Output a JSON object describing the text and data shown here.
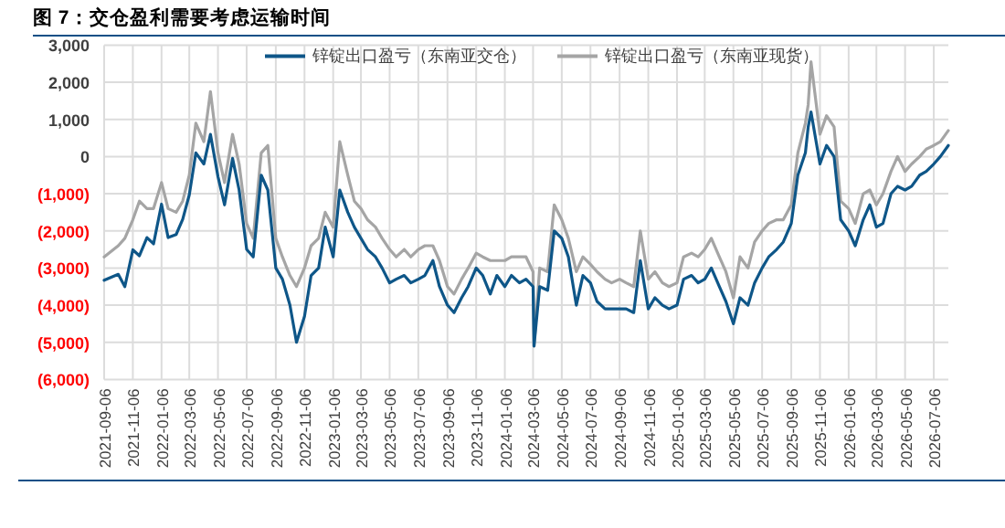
{
  "chart_data": {
    "type": "line",
    "title": "图 7：交仓盈利需要考虑运输时间",
    "legend": "top",
    "grid": true,
    "line_style": "solid",
    "marker": "none",
    "xlim": [
      "2021-09-06",
      "2026-08-06"
    ],
    "xticks": [
      "2021-09-06",
      "2021-11-06",
      "2022-01-06",
      "2022-03-06",
      "2022-05-06",
      "2022-07-06",
      "2022-09-06",
      "2022-11-06",
      "2023-01-06",
      "2023-03-06",
      "2023-05-06",
      "2023-07-06",
      "2023-09-06",
      "2023-11-06",
      "2024-01-06",
      "2024-03-06",
      "2024-05-06",
      "2024-07-06",
      "2024-09-06",
      "2024-11-06",
      "2025-01-06",
      "2025-03-06",
      "2025-05-06",
      "2025-07-06",
      "2025-09-06",
      "2025-11-06",
      "2026-01-06",
      "2026-03-06",
      "2026-05-06",
      "2026-07-06"
    ],
    "ylim": [
      -6000,
      3000
    ],
    "yticks": [
      {
        "value": 3000,
        "label": "3,000"
      },
      {
        "value": 2000,
        "label": "2,000"
      },
      {
        "value": 1000,
        "label": "1,000"
      },
      0,
      {
        "value": -1000,
        "label": "(1,000)"
      },
      {
        "value": -2000,
        "label": "(2,000)"
      },
      {
        "value": -3000,
        "label": "(3,000)"
      },
      {
        "value": -4000,
        "label": "(4,000)"
      },
      {
        "value": -5000,
        "label": "(5,000)"
      },
      {
        "value": -6000,
        "label": "(6,000)"
      }
    ],
    "x": [
      "2021-09-06",
      "2021-10-06",
      "2021-10-20",
      "2021-11-06",
      "2021-11-20",
      "2021-12-06",
      "2021-12-20",
      "2022-01-06",
      "2022-01-20",
      "2022-02-06",
      "2022-02-20",
      "2022-03-06",
      "2022-03-20",
      "2022-04-06",
      "2022-04-20",
      "2022-05-06",
      "2022-05-20",
      "2022-06-06",
      "2022-06-20",
      "2022-07-06",
      "2022-07-20",
      "2022-08-06",
      "2022-08-20",
      "2022-09-06",
      "2022-09-20",
      "2022-10-06",
      "2022-10-20",
      "2022-11-06",
      "2022-11-20",
      "2022-12-06",
      "2022-12-20",
      "2023-01-06",
      "2023-01-20",
      "2023-02-06",
      "2023-02-20",
      "2023-03-06",
      "2023-03-20",
      "2023-04-06",
      "2023-04-20",
      "2023-05-06",
      "2023-05-20",
      "2023-06-06",
      "2023-06-20",
      "2023-07-06",
      "2023-07-20",
      "2023-08-06",
      "2023-08-20",
      "2023-09-06",
      "2023-09-20",
      "2023-10-06",
      "2023-10-20",
      "2023-11-06",
      "2023-11-20",
      "2023-12-06",
      "2023-12-20",
      "2024-01-06",
      "2024-01-20",
      "2024-02-06",
      "2024-02-20",
      "2024-03-06",
      "2024-03-08",
      "2024-03-20",
      "2024-04-06",
      "2024-04-20",
      "2024-05-06",
      "2024-05-20",
      "2024-06-06",
      "2024-06-20",
      "2024-07-06",
      "2024-07-20",
      "2024-08-06",
      "2024-08-20",
      "2024-09-06",
      "2024-09-20",
      "2024-10-06",
      "2024-10-20",
      "2024-11-06",
      "2024-11-20",
      "2024-12-06",
      "2024-12-20",
      "2025-01-06",
      "2025-01-20",
      "2025-02-06",
      "2025-02-20",
      "2025-03-06",
      "2025-03-20",
      "2025-04-06",
      "2025-04-20",
      "2025-05-06",
      "2025-05-20",
      "2025-06-06",
      "2025-06-20",
      "2025-07-06",
      "2025-07-20",
      "2025-08-06",
      "2025-08-20",
      "2025-09-06",
      "2025-09-20",
      "2025-10-06",
      "2025-10-12",
      "2025-10-18",
      "2025-11-06",
      "2025-11-20",
      "2025-12-06",
      "2025-12-20",
      "2026-01-06",
      "2026-01-20",
      "2026-02-06",
      "2026-02-20",
      "2026-03-06",
      "2026-03-20",
      "2026-04-06",
      "2026-04-20",
      "2026-05-06",
      "2026-05-20",
      "2026-06-06",
      "2026-06-20",
      "2026-07-06",
      "2026-07-20",
      "2026-08-06"
    ],
    "series": [
      {
        "name": "锌锭出口盈亏（东南亚交仓）",
        "color": "#0e5688",
        "values": [
          -3330,
          -3170,
          -3500,
          -2510,
          -2670,
          -2180,
          -2350,
          -1280,
          -2180,
          -2100,
          -1690,
          -1030,
          100,
          -200,
          600,
          -540,
          -1300,
          -50,
          -900,
          -2500,
          -2700,
          -500,
          -900,
          -3000,
          -3300,
          -4000,
          -5000,
          -4300,
          -3200,
          -3000,
          -1900,
          -2700,
          -900,
          -1500,
          -1900,
          -2200,
          -2500,
          -2700,
          -3000,
          -3400,
          -3300,
          -3200,
          -3400,
          -3300,
          -3200,
          -2800,
          -3500,
          -4000,
          -4200,
          -3800,
          -3500,
          -3000,
          -3200,
          -3700,
          -3200,
          -3500,
          -3200,
          -3400,
          -3300,
          -3500,
          -5100,
          -3500,
          -3600,
          -2000,
          -2200,
          -2700,
          -4000,
          -3200,
          -3400,
          -3900,
          -4100,
          -4100,
          -4100,
          -4100,
          -4200,
          -2800,
          -4100,
          -3800,
          -4000,
          -4100,
          -4000,
          -3300,
          -3200,
          -3400,
          -3300,
          -3000,
          -3500,
          -3900,
          -4500,
          -3800,
          -4000,
          -3400,
          -3000,
          -2700,
          -2500,
          -2300,
          -1800,
          -500,
          100,
          800,
          1200,
          -200,
          300,
          0,
          -1700,
          -2000,
          -2400,
          -1700,
          -1300,
          -1900,
          -1800,
          -1000,
          -800,
          -900,
          -800,
          -500,
          -400,
          -200,
          0,
          300
        ]
      },
      {
        "name": "锌锭出口盈亏（东南亚现货）",
        "color": "#a5a5a5",
        "values": [
          -2700,
          -2400,
          -2200,
          -1700,
          -1200,
          -1400,
          -1400,
          -700,
          -1400,
          -1500,
          -1200,
          -500,
          900,
          400,
          1750,
          100,
          -700,
          600,
          -200,
          -1800,
          -2200,
          100,
          300,
          -2200,
          -2700,
          -3200,
          -3500,
          -3000,
          -2400,
          -2200,
          -1500,
          -1900,
          400,
          -500,
          -1200,
          -1400,
          -1700,
          -1900,
          -2200,
          -2500,
          -2700,
          -2500,
          -2700,
          -2500,
          -2400,
          -2400,
          -2800,
          -3500,
          -3700,
          -3300,
          -3000,
          -2600,
          -2700,
          -2800,
          -2800,
          -2800,
          -2700,
          -2700,
          -2700,
          -3100,
          -5100,
          -3000,
          -3100,
          -1300,
          -1700,
          -2200,
          -3100,
          -2700,
          -2900,
          -3100,
          -3300,
          -3400,
          -3300,
          -3400,
          -3500,
          -2000,
          -3300,
          -3100,
          -3400,
          -3500,
          -3400,
          -2700,
          -2600,
          -2700,
          -2500,
          -2200,
          -2700,
          -3100,
          -3800,
          -2700,
          -3000,
          -2300,
          -2000,
          -1800,
          -1700,
          -1700,
          -1300,
          100,
          900,
          1400,
          2550,
          600,
          1100,
          800,
          -1200,
          -1400,
          -1800,
          -1000,
          -900,
          -1300,
          -1000,
          -400,
          0,
          -400,
          -200,
          0,
          200,
          300,
          400,
          700
        ]
      }
    ]
  }
}
